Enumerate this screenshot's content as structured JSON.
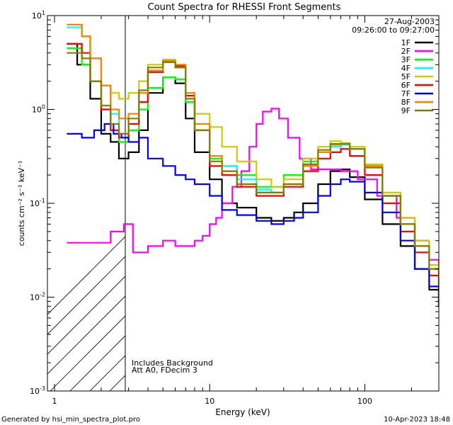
{
  "chart_data": {
    "type": "line",
    "title": "Count Spectra for RHESSI Front Segments",
    "xlabel": "Energy (keV)",
    "ylabel": "counts cm⁻² s⁻¹ keV⁻¹",
    "xscale": "log",
    "yscale": "log",
    "xlim": [
      0.9,
      300
    ],
    "ylim": [
      0.001,
      10
    ],
    "x_ticks": [
      {
        "value": 1,
        "label": "1"
      },
      {
        "value": 10,
        "label": "10"
      },
      {
        "value": 100,
        "label": "100"
      }
    ],
    "y_ticks": [
      {
        "value": 10,
        "label": "10",
        "exp": "1"
      },
      {
        "value": 1,
        "label": "10",
        "exp": "0"
      },
      {
        "value": 0.1,
        "label": "10",
        "exp": "-1"
      },
      {
        "value": 0.01,
        "label": "10",
        "exp": "-2"
      },
      {
        "value": 0.001,
        "label": "10",
        "exp": "-3"
      }
    ],
    "shaded_region": {
      "x_from": 0.9,
      "x_to": 3,
      "style": "hatched"
    },
    "date": "27-Aug-2003",
    "time_range": "09:26:00 to 09:27:00",
    "annotations": [
      "Includes Background",
      "Att A0, FDecim 3"
    ],
    "series": [
      {
        "name": "1F",
        "color": "#000000",
        "points": [
          [
            1.2,
            5
          ],
          [
            1.4,
            3
          ],
          [
            1.7,
            1.3
          ],
          [
            2,
            0.55
          ],
          [
            2.3,
            0.45
          ],
          [
            2.6,
            0.3
          ],
          [
            3,
            0.35
          ],
          [
            3.5,
            0.6
          ],
          [
            4,
            1.5
          ],
          [
            5,
            2.2
          ],
          [
            6,
            1.9
          ],
          [
            7,
            0.8
          ],
          [
            8,
            0.35
          ],
          [
            10,
            0.18
          ],
          [
            12,
            0.1
          ],
          [
            15,
            0.09
          ],
          [
            20,
            0.07
          ],
          [
            25,
            0.065
          ],
          [
            30,
            0.07
          ],
          [
            35,
            0.08
          ],
          [
            40,
            0.1
          ],
          [
            50,
            0.16
          ],
          [
            60,
            0.22
          ],
          [
            70,
            0.23
          ],
          [
            80,
            0.19
          ],
          [
            100,
            0.11
          ],
          [
            130,
            0.06
          ],
          [
            170,
            0.035
          ],
          [
            210,
            0.02
          ],
          [
            260,
            0.012
          ],
          [
            300,
            0.008
          ]
        ]
      },
      {
        "name": "2F",
        "color": "#ff00ff",
        "points": [
          [
            1.2,
            0.038
          ],
          [
            1.8,
            0.038
          ],
          [
            2.3,
            0.05
          ],
          [
            2.8,
            0.06
          ],
          [
            3.2,
            0.03
          ],
          [
            4,
            0.035
          ],
          [
            5,
            0.04
          ],
          [
            6,
            0.035
          ],
          [
            7,
            0.035
          ],
          [
            8,
            0.04
          ],
          [
            9,
            0.045
          ],
          [
            10,
            0.06
          ],
          [
            11,
            0.07
          ],
          [
            12,
            0.1
          ],
          [
            14,
            0.15
          ],
          [
            16,
            0.22
          ],
          [
            18,
            0.4
          ],
          [
            20,
            0.7
          ],
          [
            22,
            0.95
          ],
          [
            25,
            1.02
          ],
          [
            28,
            0.8
          ],
          [
            32,
            0.5
          ],
          [
            38,
            0.3
          ],
          [
            45,
            0.23
          ],
          [
            55,
            0.23
          ],
          [
            70,
            0.22
          ],
          [
            90,
            0.18
          ],
          [
            120,
            0.12
          ],
          [
            160,
            0.07
          ],
          [
            210,
            0.04
          ],
          [
            260,
            0.025
          ],
          [
            300,
            0.018
          ]
        ]
      },
      {
        "name": "3F",
        "color": "#00ff00",
        "points": [
          [
            1.2,
            4.5
          ],
          [
            1.5,
            3
          ],
          [
            1.7,
            2
          ],
          [
            2,
            1
          ],
          [
            2.3,
            0.6
          ],
          [
            2.6,
            0.45
          ],
          [
            3,
            0.6
          ],
          [
            3.5,
            1
          ],
          [
            4,
            1.7
          ],
          [
            5,
            2.2
          ],
          [
            6,
            2.1
          ],
          [
            7,
            1.2
          ],
          [
            8,
            0.6
          ],
          [
            10,
            0.3
          ],
          [
            12,
            0.25
          ],
          [
            15,
            0.2
          ],
          [
            20,
            0.15
          ],
          [
            25,
            0.15
          ],
          [
            30,
            0.2
          ],
          [
            40,
            0.28
          ],
          [
            50,
            0.35
          ],
          [
            60,
            0.4
          ],
          [
            70,
            0.42
          ],
          [
            80,
            0.38
          ],
          [
            100,
            0.25
          ],
          [
            130,
            0.12
          ],
          [
            170,
            0.06
          ],
          [
            210,
            0.035
          ],
          [
            260,
            0.02
          ],
          [
            300,
            0.014
          ]
        ]
      },
      {
        "name": "4F",
        "color": "#00ffff",
        "points": [
          [
            1.2,
            7.5
          ],
          [
            1.5,
            6
          ],
          [
            1.7,
            3.5
          ],
          [
            2,
            1.8
          ],
          [
            2.3,
            0.9
          ],
          [
            2.6,
            0.55
          ],
          [
            3,
            0.7
          ],
          [
            3.5,
            1.2
          ],
          [
            4,
            2.5
          ],
          [
            5,
            3.2
          ],
          [
            6,
            3
          ],
          [
            7,
            1.5
          ],
          [
            8,
            0.7
          ],
          [
            10,
            0.32
          ],
          [
            12,
            0.25
          ],
          [
            15,
            0.18
          ],
          [
            20,
            0.14
          ],
          [
            25,
            0.13
          ],
          [
            30,
            0.16
          ],
          [
            40,
            0.25
          ],
          [
            50,
            0.35
          ],
          [
            60,
            0.4
          ],
          [
            70,
            0.42
          ],
          [
            80,
            0.38
          ],
          [
            100,
            0.25
          ],
          [
            130,
            0.12
          ],
          [
            170,
            0.06
          ],
          [
            210,
            0.035
          ],
          [
            260,
            0.02
          ],
          [
            300,
            0.014
          ]
        ]
      },
      {
        "name": "5F",
        "color": "#cccc00",
        "points": [
          [
            1.2,
            8
          ],
          [
            1.5,
            6
          ],
          [
            1.7,
            3.5
          ],
          [
            2,
            1.8
          ],
          [
            2.3,
            1.5
          ],
          [
            2.6,
            1.3
          ],
          [
            3,
            1.5
          ],
          [
            3.5,
            2
          ],
          [
            4,
            3
          ],
          [
            5,
            3.4
          ],
          [
            6,
            2.8
          ],
          [
            7,
            1.3
          ],
          [
            8,
            0.9
          ],
          [
            10,
            0.65
          ],
          [
            12,
            0.4
          ],
          [
            15,
            0.28
          ],
          [
            20,
            0.18
          ],
          [
            25,
            0.15
          ],
          [
            30,
            0.18
          ],
          [
            40,
            0.3
          ],
          [
            50,
            0.4
          ],
          [
            60,
            0.46
          ],
          [
            70,
            0.44
          ],
          [
            80,
            0.4
          ],
          [
            100,
            0.26
          ],
          [
            130,
            0.13
          ],
          [
            170,
            0.07
          ],
          [
            210,
            0.04
          ],
          [
            260,
            0.022
          ],
          [
            300,
            0.015
          ]
        ]
      },
      {
        "name": "6F",
        "color": "#ff0000",
        "points": [
          [
            1.2,
            5
          ],
          [
            1.5,
            4
          ],
          [
            1.7,
            2
          ],
          [
            2,
            1
          ],
          [
            2.3,
            0.6
          ],
          [
            2.6,
            0.5
          ],
          [
            3,
            0.7
          ],
          [
            3.5,
            1.2
          ],
          [
            4,
            2.5
          ],
          [
            5,
            3.2
          ],
          [
            6,
            2.9
          ],
          [
            7,
            1.4
          ],
          [
            8,
            0.6
          ],
          [
            10,
            0.25
          ],
          [
            12,
            0.2
          ],
          [
            15,
            0.15
          ],
          [
            20,
            0.12
          ],
          [
            25,
            0.12
          ],
          [
            30,
            0.15
          ],
          [
            40,
            0.22
          ],
          [
            50,
            0.3
          ],
          [
            60,
            0.35
          ],
          [
            70,
            0.38
          ],
          [
            80,
            0.32
          ],
          [
            100,
            0.2
          ],
          [
            130,
            0.1
          ],
          [
            170,
            0.05
          ],
          [
            210,
            0.03
          ],
          [
            260,
            0.017
          ],
          [
            300,
            0.011
          ]
        ]
      },
      {
        "name": "7F",
        "color": "#0000ff",
        "points": [
          [
            1.2,
            0.55
          ],
          [
            1.5,
            0.5
          ],
          [
            1.8,
            0.6
          ],
          [
            2.1,
            0.7
          ],
          [
            2.4,
            0.55
          ],
          [
            2.7,
            0.5
          ],
          [
            3,
            0.45
          ],
          [
            3.5,
            0.5
          ],
          [
            4,
            0.3
          ],
          [
            5,
            0.25
          ],
          [
            6,
            0.2
          ],
          [
            7,
            0.18
          ],
          [
            8,
            0.16
          ],
          [
            10,
            0.12
          ],
          [
            12,
            0.085
          ],
          [
            15,
            0.075
          ],
          [
            20,
            0.065
          ],
          [
            25,
            0.06
          ],
          [
            30,
            0.065
          ],
          [
            35,
            0.07
          ],
          [
            40,
            0.08
          ],
          [
            50,
            0.12
          ],
          [
            60,
            0.16
          ],
          [
            70,
            0.18
          ],
          [
            80,
            0.17
          ],
          [
            100,
            0.13
          ],
          [
            130,
            0.08
          ],
          [
            170,
            0.04
          ],
          [
            210,
            0.02
          ],
          [
            260,
            0.013
          ],
          [
            300,
            0.008
          ]
        ]
      },
      {
        "name": "8F",
        "color": "#ff8000",
        "points": [
          [
            1.2,
            8
          ],
          [
            1.5,
            6
          ],
          [
            1.7,
            3.5
          ],
          [
            2,
            1.8
          ],
          [
            2.3,
            1
          ],
          [
            2.6,
            0.8
          ],
          [
            3,
            0.9
          ],
          [
            3.5,
            1.5
          ],
          [
            4,
            2.6
          ],
          [
            5,
            3.3
          ],
          [
            6,
            3
          ],
          [
            7,
            1.5
          ],
          [
            8,
            0.7
          ],
          [
            10,
            0.32
          ],
          [
            12,
            0.22
          ],
          [
            15,
            0.16
          ],
          [
            20,
            0.13
          ],
          [
            25,
            0.13
          ],
          [
            30,
            0.16
          ],
          [
            40,
            0.25
          ],
          [
            50,
            0.35
          ],
          [
            60,
            0.42
          ],
          [
            70,
            0.43
          ],
          [
            80,
            0.38
          ],
          [
            100,
            0.25
          ],
          [
            130,
            0.12
          ],
          [
            170,
            0.06
          ],
          [
            210,
            0.035
          ],
          [
            260,
            0.02
          ],
          [
            300,
            0.014
          ]
        ]
      },
      {
        "name": "9F",
        "color": "#808000",
        "points": [
          [
            1.2,
            4
          ],
          [
            1.5,
            3.5
          ],
          [
            1.7,
            2
          ],
          [
            2,
            1.1
          ],
          [
            2.3,
            0.7
          ],
          [
            2.6,
            0.55
          ],
          [
            3,
            0.8
          ],
          [
            3.5,
            1.6
          ],
          [
            4,
            2.8
          ],
          [
            5,
            3.2
          ],
          [
            6,
            2.8
          ],
          [
            7,
            1.3
          ],
          [
            8,
            0.6
          ],
          [
            10,
            0.28
          ],
          [
            12,
            0.22
          ],
          [
            15,
            0.16
          ],
          [
            20,
            0.13
          ],
          [
            25,
            0.13
          ],
          [
            30,
            0.16
          ],
          [
            40,
            0.26
          ],
          [
            50,
            0.37
          ],
          [
            60,
            0.43
          ],
          [
            70,
            0.43
          ],
          [
            80,
            0.38
          ],
          [
            100,
            0.24
          ],
          [
            130,
            0.12
          ],
          [
            170,
            0.06
          ],
          [
            210,
            0.035
          ],
          [
            260,
            0.02
          ],
          [
            300,
            0.014
          ]
        ]
      }
    ]
  },
  "footer": {
    "generated": "Generated by hsi_min_spectra_plot.pro",
    "timestamp": "10-Apr-2023 18:48"
  }
}
